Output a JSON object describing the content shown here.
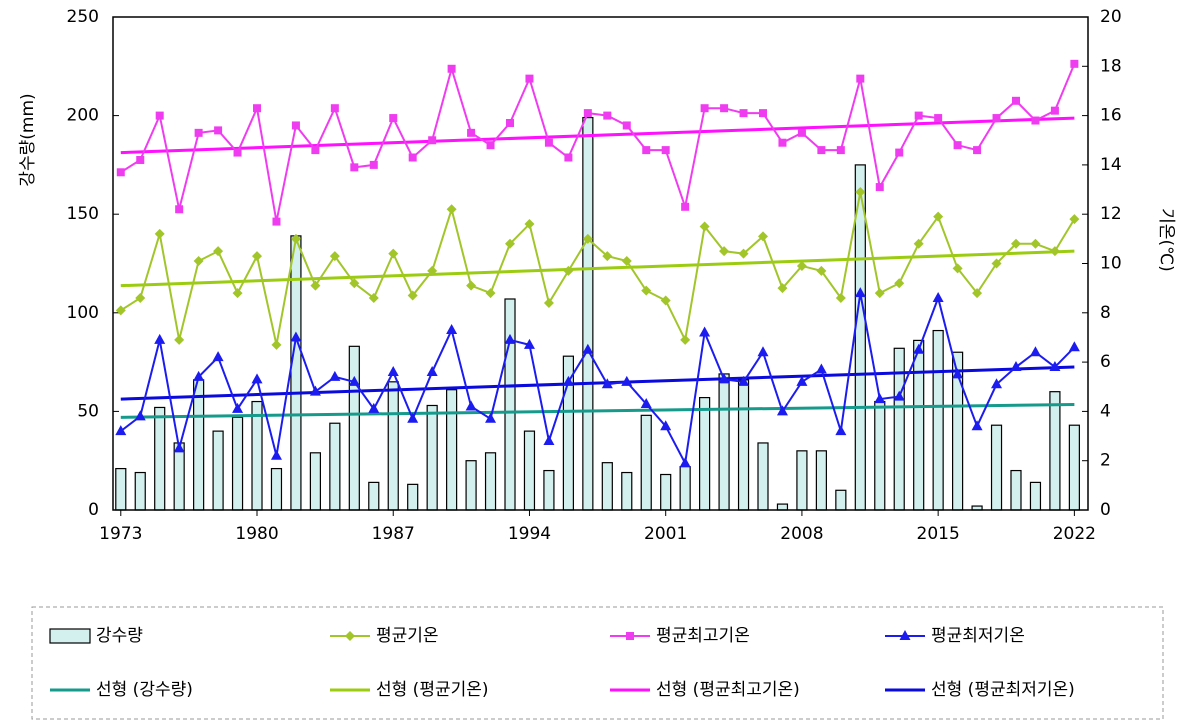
{
  "chart_data": {
    "type": "combo",
    "y_label": "강수량(mm)",
    "y2_label": "기온(℃)",
    "x": [
      1973,
      1974,
      1975,
      1976,
      1977,
      1978,
      1979,
      1980,
      1981,
      1982,
      1983,
      1984,
      1985,
      1986,
      1987,
      1988,
      1989,
      1990,
      1991,
      1992,
      1993,
      1994,
      1995,
      1996,
      1997,
      1998,
      1999,
      2000,
      2001,
      2002,
      2003,
      2004,
      2005,
      2006,
      2007,
      2008,
      2009,
      2010,
      2011,
      2012,
      2013,
      2014,
      2015,
      2016,
      2017,
      2018,
      2019,
      2020,
      2021,
      2022
    ],
    "xlim": [
      1972.6,
      2022.7
    ],
    "xticks": [
      1973,
      1980,
      1987,
      1994,
      2001,
      2008,
      2015,
      2022
    ],
    "ylim": [
      0,
      250
    ],
    "yticks": [
      0,
      50,
      100,
      150,
      200,
      250
    ],
    "y2lim": [
      0,
      20
    ],
    "y2ticks": [
      0,
      2,
      4,
      6,
      8,
      10,
      12,
      14,
      16,
      18,
      20
    ],
    "grid": false,
    "series": [
      {
        "name": "강수량",
        "type": "bar",
        "color": "#d4f0ee",
        "axis": "y",
        "values": [
          21,
          19,
          52,
          34,
          66,
          40,
          47,
          55,
          21,
          139,
          29,
          44,
          83,
          14,
          65,
          13,
          53,
          61,
          25,
          29,
          107,
          40,
          20,
          78,
          199,
          24,
          19,
          48,
          18,
          22,
          57,
          69,
          66,
          34,
          3,
          30,
          30,
          10,
          175,
          55,
          82,
          86,
          91,
          80,
          2,
          43,
          20,
          14,
          60,
          43
        ]
      },
      {
        "name": "평균기온",
        "type": "line",
        "marker": "diamond",
        "color": "#a2c62a",
        "axis": "y2",
        "values": [
          8.1,
          8.6,
          11.2,
          6.9,
          10.1,
          10.5,
          8.8,
          10.3,
          6.7,
          11.0,
          9.1,
          10.3,
          9.2,
          8.6,
          10.4,
          8.7,
          9.7,
          12.2,
          9.1,
          8.8,
          10.8,
          11.6,
          8.4,
          9.7,
          11.0,
          10.3,
          10.1,
          8.9,
          8.5,
          6.9,
          11.5,
          10.5,
          10.4,
          11.1,
          9.0,
          9.9,
          9.7,
          8.6,
          12.9,
          8.8,
          9.2,
          10.8,
          11.9,
          9.8,
          8.8,
          10.0,
          10.8,
          10.8,
          10.5,
          11.8
        ]
      },
      {
        "name": "평균최고기온",
        "type": "line",
        "marker": "square",
        "color": "#f03cf0",
        "axis": "y2",
        "values": [
          13.7,
          14.2,
          16.0,
          12.2,
          15.3,
          15.4,
          14.5,
          16.3,
          11.7,
          15.6,
          14.6,
          16.3,
          13.9,
          14.0,
          15.9,
          14.3,
          15.0,
          17.9,
          15.3,
          14.8,
          15.7,
          17.5,
          14.9,
          14.3,
          16.1,
          16.0,
          15.6,
          14.6,
          14.6,
          12.3,
          16.3,
          16.3,
          16.1,
          16.1,
          14.9,
          15.3,
          14.6,
          14.6,
          17.5,
          13.1,
          14.5,
          16.0,
          15.9,
          14.8,
          14.6,
          15.9,
          16.6,
          15.8,
          16.2,
          18.1
        ]
      },
      {
        "name": "평균최저기온",
        "type": "line",
        "marker": "triangle",
        "color": "#1c1cf0",
        "axis": "y2",
        "values": [
          3.2,
          3.8,
          6.9,
          2.5,
          5.4,
          6.2,
          4.1,
          5.3,
          2.2,
          7.0,
          4.8,
          5.4,
          5.2,
          4.1,
          5.6,
          3.7,
          5.6,
          7.3,
          4.2,
          3.7,
          6.9,
          6.7,
          2.8,
          5.2,
          6.5,
          5.1,
          5.2,
          4.3,
          3.4,
          1.9,
          7.2,
          5.3,
          5.2,
          6.4,
          4.0,
          5.2,
          5.7,
          3.2,
          8.8,
          4.5,
          4.6,
          6.5,
          8.6,
          5.5,
          3.4,
          5.1,
          5.8,
          6.4,
          5.8,
          6.6
        ]
      }
    ],
    "trends": [
      {
        "name": "선형 (강수량)",
        "color": "#159a8c",
        "axis": "y",
        "x": [
          1973,
          2022
        ],
        "values": [
          47,
          53.5
        ]
      },
      {
        "name": "선형 (평균기온)",
        "color": "#9ccc10",
        "axis": "y2",
        "x": [
          1973,
          2022
        ],
        "values": [
          9.1,
          10.5
        ]
      },
      {
        "name": "선형 (평균최고기온)",
        "color": "#ff10ff",
        "axis": "y2",
        "x": [
          1973,
          2022
        ],
        "values": [
          14.5,
          15.9
        ]
      },
      {
        "name": "선형 (평균최저기온)",
        "color": "#0a0adc",
        "axis": "y2",
        "x": [
          1973,
          2022
        ],
        "values": [
          4.5,
          5.8
        ]
      }
    ]
  }
}
